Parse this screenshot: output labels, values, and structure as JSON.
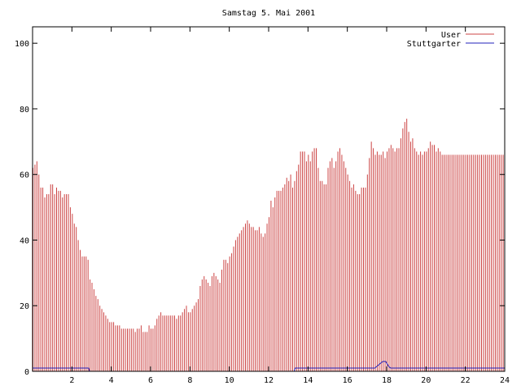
{
  "chart_data": {
    "type": "bar",
    "title": "Samstag 5. Mai 2001",
    "xlabel": "",
    "ylabel": "",
    "xlim": [
      0,
      24
    ],
    "ylim": [
      0,
      105
    ],
    "x_ticks": [
      2,
      4,
      6,
      8,
      10,
      12,
      14,
      16,
      18,
      20,
      22,
      24
    ],
    "y_ticks": [
      0,
      20,
      40,
      60,
      80,
      100
    ],
    "grid": false,
    "legend_position": "top-right",
    "series": [
      {
        "name": "User",
        "color": "#cc4444",
        "render": "impulses",
        "points": [
          [
            0.0,
            62
          ],
          [
            0.1,
            63
          ],
          [
            0.2,
            64
          ],
          [
            0.3,
            60
          ],
          [
            0.4,
            56
          ],
          [
            0.5,
            56
          ],
          [
            0.6,
            53
          ],
          [
            0.7,
            54
          ],
          [
            0.8,
            54
          ],
          [
            0.9,
            57
          ],
          [
            1.0,
            57
          ],
          [
            1.1,
            54
          ],
          [
            1.2,
            56
          ],
          [
            1.3,
            55
          ],
          [
            1.4,
            55
          ],
          [
            1.5,
            53
          ],
          [
            1.6,
            54
          ],
          [
            1.7,
            54
          ],
          [
            1.8,
            54
          ],
          [
            1.9,
            50
          ],
          [
            2.0,
            48
          ],
          [
            2.1,
            45
          ],
          [
            2.2,
            44
          ],
          [
            2.3,
            40
          ],
          [
            2.4,
            37
          ],
          [
            2.5,
            35
          ],
          [
            2.6,
            35
          ],
          [
            2.7,
            35
          ],
          [
            2.8,
            34
          ],
          [
            2.9,
            28
          ],
          [
            3.0,
            27
          ],
          [
            3.1,
            25
          ],
          [
            3.2,
            23
          ],
          [
            3.3,
            22
          ],
          [
            3.4,
            20
          ],
          [
            3.5,
            19
          ],
          [
            3.6,
            18
          ],
          [
            3.7,
            17
          ],
          [
            3.8,
            16
          ],
          [
            3.9,
            15
          ],
          [
            4.0,
            15
          ],
          [
            4.1,
            15
          ],
          [
            4.2,
            14
          ],
          [
            4.3,
            14
          ],
          [
            4.4,
            14
          ],
          [
            4.5,
            13
          ],
          [
            4.6,
            13
          ],
          [
            4.7,
            13
          ],
          [
            4.8,
            13
          ],
          [
            4.9,
            13
          ],
          [
            5.0,
            13
          ],
          [
            5.1,
            13
          ],
          [
            5.2,
            12
          ],
          [
            5.3,
            13
          ],
          [
            5.4,
            13
          ],
          [
            5.5,
            14
          ],
          [
            5.6,
            12
          ],
          [
            5.7,
            12
          ],
          [
            5.8,
            12
          ],
          [
            5.9,
            14
          ],
          [
            6.0,
            13
          ],
          [
            6.1,
            13
          ],
          [
            6.2,
            14
          ],
          [
            6.3,
            16
          ],
          [
            6.4,
            17
          ],
          [
            6.5,
            18
          ],
          [
            6.6,
            17
          ],
          [
            6.7,
            17
          ],
          [
            6.8,
            17
          ],
          [
            6.9,
            17
          ],
          [
            7.0,
            17
          ],
          [
            7.1,
            17
          ],
          [
            7.2,
            17
          ],
          [
            7.3,
            16
          ],
          [
            7.4,
            17
          ],
          [
            7.5,
            17
          ],
          [
            7.6,
            18
          ],
          [
            7.7,
            19
          ],
          [
            7.8,
            20
          ],
          [
            7.9,
            18
          ],
          [
            8.0,
            18
          ],
          [
            8.1,
            19
          ],
          [
            8.2,
            20
          ],
          [
            8.3,
            21
          ],
          [
            8.4,
            22
          ],
          [
            8.5,
            26
          ],
          [
            8.6,
            28
          ],
          [
            8.7,
            29
          ],
          [
            8.8,
            28
          ],
          [
            8.9,
            27
          ],
          [
            9.0,
            26
          ],
          [
            9.1,
            29
          ],
          [
            9.2,
            30
          ],
          [
            9.3,
            29
          ],
          [
            9.4,
            28
          ],
          [
            9.5,
            27
          ],
          [
            9.6,
            31
          ],
          [
            9.7,
            34
          ],
          [
            9.8,
            34
          ],
          [
            9.9,
            33
          ],
          [
            10.0,
            35
          ],
          [
            10.1,
            36
          ],
          [
            10.2,
            38
          ],
          [
            10.3,
            40
          ],
          [
            10.4,
            41
          ],
          [
            10.5,
            42
          ],
          [
            10.6,
            43
          ],
          [
            10.7,
            44
          ],
          [
            10.8,
            45
          ],
          [
            10.9,
            46
          ],
          [
            11.0,
            45
          ],
          [
            11.1,
            44
          ],
          [
            11.2,
            44
          ],
          [
            11.3,
            43
          ],
          [
            11.4,
            43
          ],
          [
            11.5,
            44
          ],
          [
            11.6,
            42
          ],
          [
            11.7,
            41
          ],
          [
            11.8,
            42
          ],
          [
            11.9,
            45
          ],
          [
            12.0,
            47
          ],
          [
            12.1,
            52
          ],
          [
            12.2,
            50
          ],
          [
            12.3,
            53
          ],
          [
            12.4,
            55
          ],
          [
            12.5,
            55
          ],
          [
            12.6,
            55
          ],
          [
            12.7,
            56
          ],
          [
            12.8,
            57
          ],
          [
            12.9,
            59
          ],
          [
            13.0,
            58
          ],
          [
            13.1,
            60
          ],
          [
            13.2,
            56
          ],
          [
            13.3,
            58
          ],
          [
            13.4,
            61
          ],
          [
            13.5,
            63
          ],
          [
            13.6,
            67
          ],
          [
            13.7,
            67
          ],
          [
            13.8,
            67
          ],
          [
            13.9,
            64
          ],
          [
            14.0,
            66
          ],
          [
            14.1,
            64
          ],
          [
            14.2,
            67
          ],
          [
            14.3,
            68
          ],
          [
            14.4,
            68
          ],
          [
            14.5,
            62
          ],
          [
            14.6,
            58
          ],
          [
            14.7,
            58
          ],
          [
            14.8,
            57
          ],
          [
            14.9,
            57
          ],
          [
            15.0,
            62
          ],
          [
            15.1,
            64
          ],
          [
            15.2,
            65
          ],
          [
            15.3,
            62
          ],
          [
            15.4,
            64
          ],
          [
            15.5,
            67
          ],
          [
            15.6,
            68
          ],
          [
            15.7,
            66
          ],
          [
            15.8,
            64
          ],
          [
            15.9,
            62
          ],
          [
            16.0,
            60
          ],
          [
            16.1,
            58
          ],
          [
            16.2,
            56
          ],
          [
            16.3,
            57
          ],
          [
            16.4,
            55
          ],
          [
            16.5,
            54
          ],
          [
            16.6,
            54
          ],
          [
            16.7,
            56
          ],
          [
            16.8,
            56
          ],
          [
            16.9,
            56
          ],
          [
            17.0,
            60
          ],
          [
            17.1,
            65
          ],
          [
            17.2,
            70
          ],
          [
            17.3,
            68
          ],
          [
            17.4,
            66
          ],
          [
            17.5,
            67
          ],
          [
            17.6,
            66
          ],
          [
            17.7,
            66
          ],
          [
            17.8,
            67
          ],
          [
            17.9,
            65
          ],
          [
            18.0,
            67
          ],
          [
            18.1,
            68
          ],
          [
            18.2,
            69
          ],
          [
            18.3,
            68
          ],
          [
            18.4,
            67
          ],
          [
            18.5,
            68
          ],
          [
            18.6,
            68
          ],
          [
            18.7,
            71
          ],
          [
            18.8,
            74
          ],
          [
            18.9,
            76
          ],
          [
            19.0,
            77
          ],
          [
            19.1,
            73
          ],
          [
            19.2,
            70
          ],
          [
            19.3,
            71
          ],
          [
            19.4,
            68
          ],
          [
            19.5,
            67
          ],
          [
            19.6,
            66
          ],
          [
            19.7,
            67
          ],
          [
            19.8,
            66
          ],
          [
            19.9,
            67
          ],
          [
            20.0,
            67
          ],
          [
            20.1,
            68
          ],
          [
            20.2,
            70
          ],
          [
            20.3,
            69
          ],
          [
            20.4,
            69
          ],
          [
            20.5,
            67
          ],
          [
            20.6,
            68
          ],
          [
            20.7,
            67
          ],
          [
            20.8,
            66
          ],
          [
            20.9,
            66
          ],
          [
            21.0,
            66
          ],
          [
            21.1,
            66
          ],
          [
            21.2,
            66
          ],
          [
            21.3,
            66
          ],
          [
            21.4,
            66
          ],
          [
            21.5,
            66
          ],
          [
            21.6,
            66
          ],
          [
            21.7,
            66
          ],
          [
            21.8,
            66
          ],
          [
            21.9,
            66
          ],
          [
            22.0,
            66
          ],
          [
            22.1,
            66
          ],
          [
            22.2,
            66
          ],
          [
            22.3,
            66
          ],
          [
            22.4,
            66
          ],
          [
            22.5,
            66
          ],
          [
            22.6,
            66
          ],
          [
            22.7,
            66
          ],
          [
            22.8,
            66
          ],
          [
            22.9,
            66
          ],
          [
            23.0,
            66
          ],
          [
            23.1,
            66
          ],
          [
            23.2,
            66
          ],
          [
            23.3,
            66
          ],
          [
            23.4,
            66
          ],
          [
            23.5,
            66
          ],
          [
            23.6,
            66
          ],
          [
            23.7,
            66
          ],
          [
            23.8,
            66
          ],
          [
            23.9,
            66
          ]
        ]
      },
      {
        "name": "Stuttgarter",
        "color": "#2222bb",
        "render": "line",
        "points": [
          [
            0.0,
            1
          ],
          [
            2.85,
            1
          ],
          [
            2.9,
            0
          ],
          [
            13.3,
            0
          ],
          [
            13.35,
            1
          ],
          [
            17.4,
            1
          ],
          [
            17.6,
            2
          ],
          [
            17.8,
            3
          ],
          [
            17.95,
            3
          ],
          [
            18.1,
            1.5
          ],
          [
            18.2,
            1
          ],
          [
            24.0,
            1
          ]
        ]
      }
    ]
  }
}
